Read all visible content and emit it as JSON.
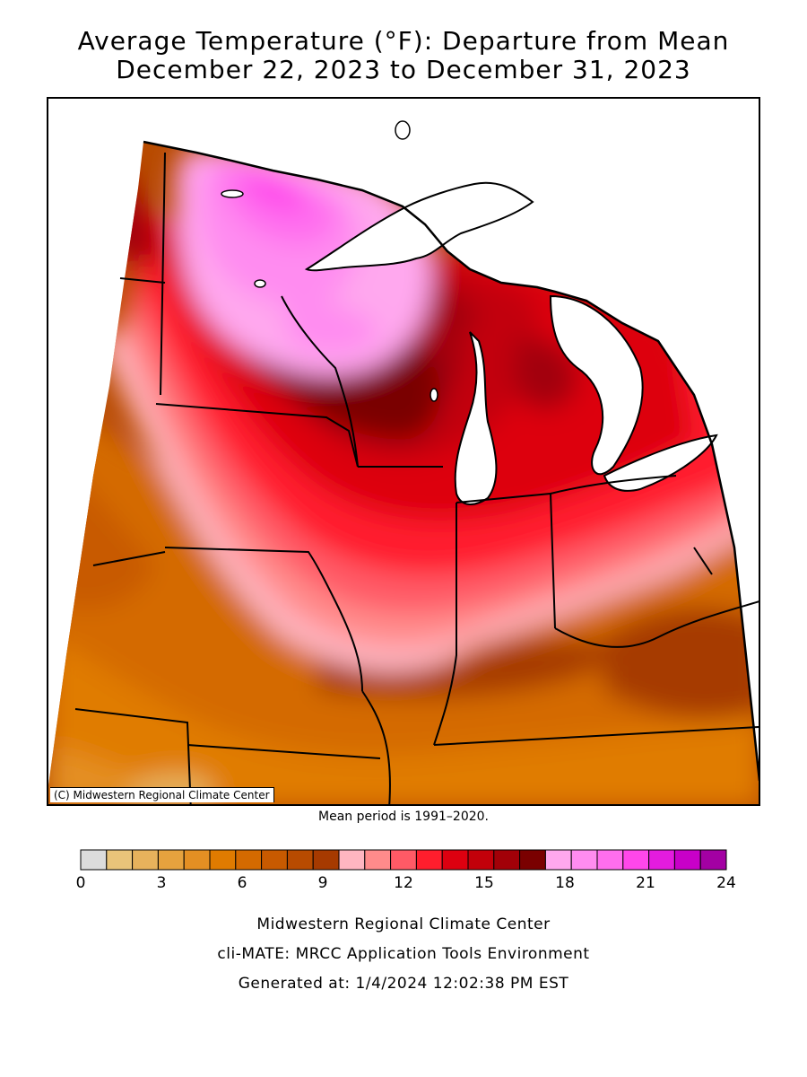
{
  "title": {
    "line1": "Average Temperature (°F): Departure from Mean",
    "line2": "December 22, 2023 to December 31, 2023"
  },
  "map": {
    "credit": "(C) Midwestern Regional Climate Center",
    "states": [
      "Minnesota",
      "Wisconsin",
      "Michigan",
      "Iowa",
      "Illinois",
      "Indiana",
      "Ohio",
      "Missouri",
      "Kentucky"
    ]
  },
  "mean_period": "Mean period is 1991–2020.",
  "legend": {
    "colors": [
      "#dcdcdc",
      "#e9c47a",
      "#e7b25c",
      "#e6a23e",
      "#e48f23",
      "#e07b00",
      "#d46a00",
      "#c85a00",
      "#b84b00",
      "#a63a00",
      "#ffb6c1",
      "#ff8b8b",
      "#ff5a66",
      "#ff1e2d",
      "#dd0010",
      "#c2000a",
      "#a20008",
      "#7a0000",
      "#ffa8ee",
      "#ff8cf0",
      "#ff6eee",
      "#ff47ea",
      "#e41cde",
      "#c800c8",
      "#a300a3"
    ],
    "tick_labels": [
      "0",
      "3",
      "6",
      "9",
      "12",
      "15",
      "18",
      "21",
      "24"
    ]
  },
  "footer": {
    "line1": "Midwestern Regional Climate Center",
    "line2": "cli-MATE: MRCC Application Tools Environment",
    "line3": "Generated at: 1/4/2024 12:02:38 PM EST"
  }
}
